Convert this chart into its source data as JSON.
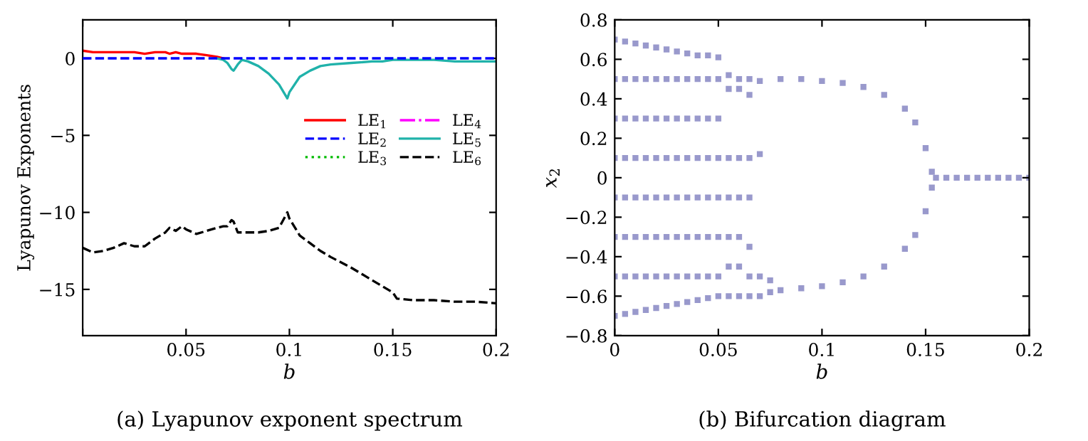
{
  "chart_data": [
    {
      "type": "line",
      "title": "(a) Lyapunov exponent spectrum",
      "xlabel": "b",
      "ylabel": "Lyapunov Exponents",
      "x": [
        0,
        0.005,
        0.01,
        0.015,
        0.02,
        0.025,
        0.03,
        0.035,
        0.04,
        0.042,
        0.045,
        0.048,
        0.05,
        0.055,
        0.06,
        0.065,
        0.068,
        0.07,
        0.072,
        0.073,
        0.075,
        0.077,
        0.08,
        0.085,
        0.09,
        0.095,
        0.099,
        0.1,
        0.105,
        0.11,
        0.115,
        0.12,
        0.13,
        0.14,
        0.145,
        0.15,
        0.152,
        0.16,
        0.17,
        0.18,
        0.19,
        0.2
      ],
      "series": [
        {
          "name": "LE$_{1}$",
          "color": "#ff0000",
          "line_style": "solid",
          "values": [
            0.5,
            0.4,
            0.4,
            0.4,
            0.4,
            0.4,
            0.3,
            0.4,
            0.4,
            0.3,
            0.4,
            0.3,
            0.3,
            0.3,
            0.2,
            0.1,
            0,
            null,
            null,
            null,
            null,
            null,
            null,
            null,
            null,
            null,
            null,
            null,
            null,
            null,
            null,
            null,
            null,
            null,
            null,
            null,
            null,
            null,
            null,
            null,
            null,
            null
          ]
        },
        {
          "name": "LE$_{2}$",
          "color": "#0000ff",
          "line_style": "dashed",
          "values": [
            0,
            0,
            0,
            0,
            0,
            0,
            0,
            0,
            0,
            0,
            0,
            0,
            0,
            0,
            0,
            0,
            0,
            0,
            0,
            0,
            0,
            0,
            0,
            0,
            0,
            0,
            0,
            0,
            0,
            0,
            0,
            0,
            0,
            0,
            0,
            0,
            0,
            0,
            0,
            0,
            0,
            0
          ]
        },
        {
          "name": "LE$_{3}$",
          "color": "#00bb00",
          "line_style": "dotted",
          "values": [
            null,
            null,
            null,
            null,
            null,
            null,
            null,
            null,
            null,
            null,
            null,
            null,
            null,
            null,
            null,
            null,
            null,
            null,
            null,
            null,
            null,
            null,
            null,
            null,
            null,
            null,
            null,
            null,
            null,
            null,
            null,
            null,
            null,
            null,
            null,
            null,
            null,
            null,
            null,
            null,
            null,
            null
          ]
        },
        {
          "name": "LE$_{4}$",
          "color": "#ff00ff",
          "line_style": "dashdot",
          "values": [
            null,
            null,
            null,
            null,
            null,
            null,
            null,
            null,
            null,
            null,
            null,
            null,
            null,
            null,
            null,
            null,
            null,
            null,
            null,
            null,
            null,
            null,
            null,
            null,
            null,
            null,
            null,
            null,
            null,
            null,
            null,
            null,
            null,
            null,
            null,
            null,
            null,
            null,
            null,
            null,
            null,
            null
          ]
        },
        {
          "name": "LE$_{5}$",
          "color": "#20b2aa",
          "line_style": "solid",
          "values": [
            null,
            null,
            null,
            null,
            null,
            null,
            null,
            null,
            null,
            null,
            null,
            null,
            null,
            null,
            null,
            0,
            -0.1,
            -0.3,
            -0.7,
            -0.8,
            -0.4,
            -0.1,
            -0.2,
            -0.5,
            -1.0,
            -1.7,
            -2.6,
            -2.2,
            -1.2,
            -0.8,
            -0.5,
            -0.4,
            -0.3,
            -0.2,
            -0.2,
            -0.1,
            -0.1,
            -0.1,
            -0.1,
            -0.2,
            -0.2,
            -0.2
          ]
        },
        {
          "name": "LE$_{6}$",
          "color": "#000000",
          "line_style": "dashed",
          "values": [
            -12.3,
            -12.6,
            -12.5,
            -12.3,
            -12.0,
            -12.2,
            -12.2,
            -11.7,
            -11.3,
            -11.0,
            -11.2,
            -10.9,
            -11.1,
            -11.4,
            -11.2,
            -11.0,
            -10.9,
            -10.9,
            -10.5,
            -10.6,
            -11.3,
            -11.3,
            -11.3,
            -11.3,
            -11.2,
            -11.0,
            -10.0,
            -10.4,
            -11.5,
            -12.0,
            -12.5,
            -12.9,
            -13.6,
            -14.4,
            -14.8,
            -15.2,
            -15.6,
            -15.7,
            -15.7,
            -15.8,
            -15.8,
            -15.9
          ]
        }
      ],
      "xlim": [
        0,
        0.2
      ],
      "xticks": [
        {
          "value": 0,
          "label": null
        },
        0.05,
        0.1,
        0.15,
        0.2
      ],
      "ylim": [
        -18,
        2.5
      ],
      "yticks": [
        0,
        {
          "value": -5,
          "label": "−5"
        },
        {
          "value": -10,
          "label": "−10"
        },
        {
          "value": -15,
          "label": "−15"
        }
      ],
      "grid": false,
      "legend": "center right"
    },
    {
      "type": "scatter",
      "title": "(b) Bifurcation diagram",
      "xlabel": "b",
      "ylabel": "x$_{2}$",
      "marker": "square",
      "series": [
        {
          "color": "#9999cc",
          "x": [
            0,
            0,
            0,
            0,
            0,
            0,
            0,
            0,
            0.005,
            0.005,
            0.005,
            0.005,
            0.005,
            0.005,
            0.005,
            0.005,
            0.01,
            0.01,
            0.01,
            0.01,
            0.01,
            0.01,
            0.01,
            0.01,
            0.015,
            0.015,
            0.015,
            0.015,
            0.015,
            0.015,
            0.015,
            0.015,
            0.02,
            0.02,
            0.02,
            0.02,
            0.02,
            0.02,
            0.02,
            0.02,
            0.025,
            0.025,
            0.025,
            0.025,
            0.025,
            0.025,
            0.025,
            0.025,
            0.03,
            0.03,
            0.03,
            0.03,
            0.03,
            0.03,
            0.03,
            0.03,
            0.035,
            0.035,
            0.035,
            0.035,
            0.035,
            0.035,
            0.035,
            0.035,
            0.04,
            0.04,
            0.04,
            0.04,
            0.04,
            0.04,
            0.04,
            0.04,
            0.045,
            0.045,
            0.045,
            0.045,
            0.045,
            0.045,
            0.045,
            0.045,
            0.05,
            0.05,
            0.05,
            0.05,
            0.05,
            0.05,
            0.05,
            0.05,
            0.055,
            0.055,
            0.055,
            0.055,
            0.055,
            0.055,
            0.055,
            0.06,
            0.06,
            0.06,
            0.06,
            0.06,
            0.06,
            0.06,
            0.065,
            0.065,
            0.065,
            0.065,
            0.065,
            0.065,
            0.065,
            0.07,
            0.07,
            0.07,
            0.07,
            0.075,
            0.075,
            0.08,
            0.08,
            0.09,
            0.09,
            0.1,
            0.1,
            0.11,
            0.11,
            0.12,
            0.12,
            0.13,
            0.13,
            0.14,
            0.14,
            0.145,
            0.145,
            0.15,
            0.15,
            0.153,
            0.153,
            0.155,
            0.16,
            0.165,
            0.17,
            0.175,
            0.18,
            0.185,
            0.19,
            0.195,
            0.2
          ],
          "values": [
            0.7,
            0.5,
            0.3,
            0.1,
            -0.1,
            -0.3,
            -0.5,
            -0.7,
            0.69,
            0.5,
            0.3,
            0.1,
            -0.1,
            -0.3,
            -0.5,
            -0.69,
            0.68,
            0.5,
            0.3,
            0.1,
            -0.1,
            -0.3,
            -0.5,
            -0.68,
            0.67,
            0.5,
            0.3,
            0.1,
            -0.1,
            -0.3,
            -0.5,
            -0.67,
            0.66,
            0.5,
            0.3,
            0.1,
            -0.1,
            -0.3,
            -0.5,
            -0.66,
            0.65,
            0.5,
            0.3,
            0.1,
            -0.1,
            -0.3,
            -0.5,
            -0.65,
            0.64,
            0.5,
            0.3,
            0.1,
            -0.1,
            -0.3,
            -0.5,
            -0.64,
            0.63,
            0.5,
            0.3,
            0.1,
            -0.1,
            -0.3,
            -0.5,
            -0.63,
            0.62,
            0.5,
            0.3,
            0.1,
            -0.1,
            -0.3,
            -0.5,
            -0.62,
            0.62,
            0.5,
            0.3,
            0.1,
            -0.1,
            -0.3,
            -0.5,
            -0.61,
            0.61,
            0.5,
            0.3,
            0.1,
            -0.1,
            -0.3,
            -0.5,
            -0.6,
            0.52,
            0.45,
            0.1,
            -0.1,
            -0.3,
            -0.45,
            -0.6,
            0.5,
            0.45,
            0.1,
            -0.1,
            -0.3,
            -0.45,
            -0.6,
            0.5,
            0.42,
            0.1,
            -0.1,
            -0.35,
            -0.5,
            -0.6,
            0.49,
            0.12,
            -0.5,
            -0.6,
            -0.52,
            -0.58,
            0.5,
            -0.57,
            0.5,
            -0.56,
            0.49,
            -0.55,
            0.48,
            -0.53,
            0.46,
            -0.5,
            0.42,
            -0.45,
            0.35,
            -0.36,
            0.28,
            -0.29,
            0.15,
            -0.17,
            0.03,
            -0.05,
            0,
            0,
            0,
            0,
            0,
            0,
            0,
            0,
            0,
            0
          ]
        }
      ],
      "xlim": [
        0,
        0.2
      ],
      "xticks": [
        0,
        0.05,
        0.1,
        0.15,
        0.2
      ],
      "ylim": [
        -0.8,
        0.8
      ],
      "yticks": [
        {
          "value": -0.8,
          "label": "−0.8"
        },
        {
          "value": -0.6,
          "label": "−0.6"
        },
        {
          "value": -0.4,
          "label": "−0.4"
        },
        {
          "value": -0.2,
          "label": "−0.2"
        },
        0,
        0.2,
        0.4,
        0.6,
        0.8
      ],
      "grid": false,
      "legend": false
    }
  ]
}
